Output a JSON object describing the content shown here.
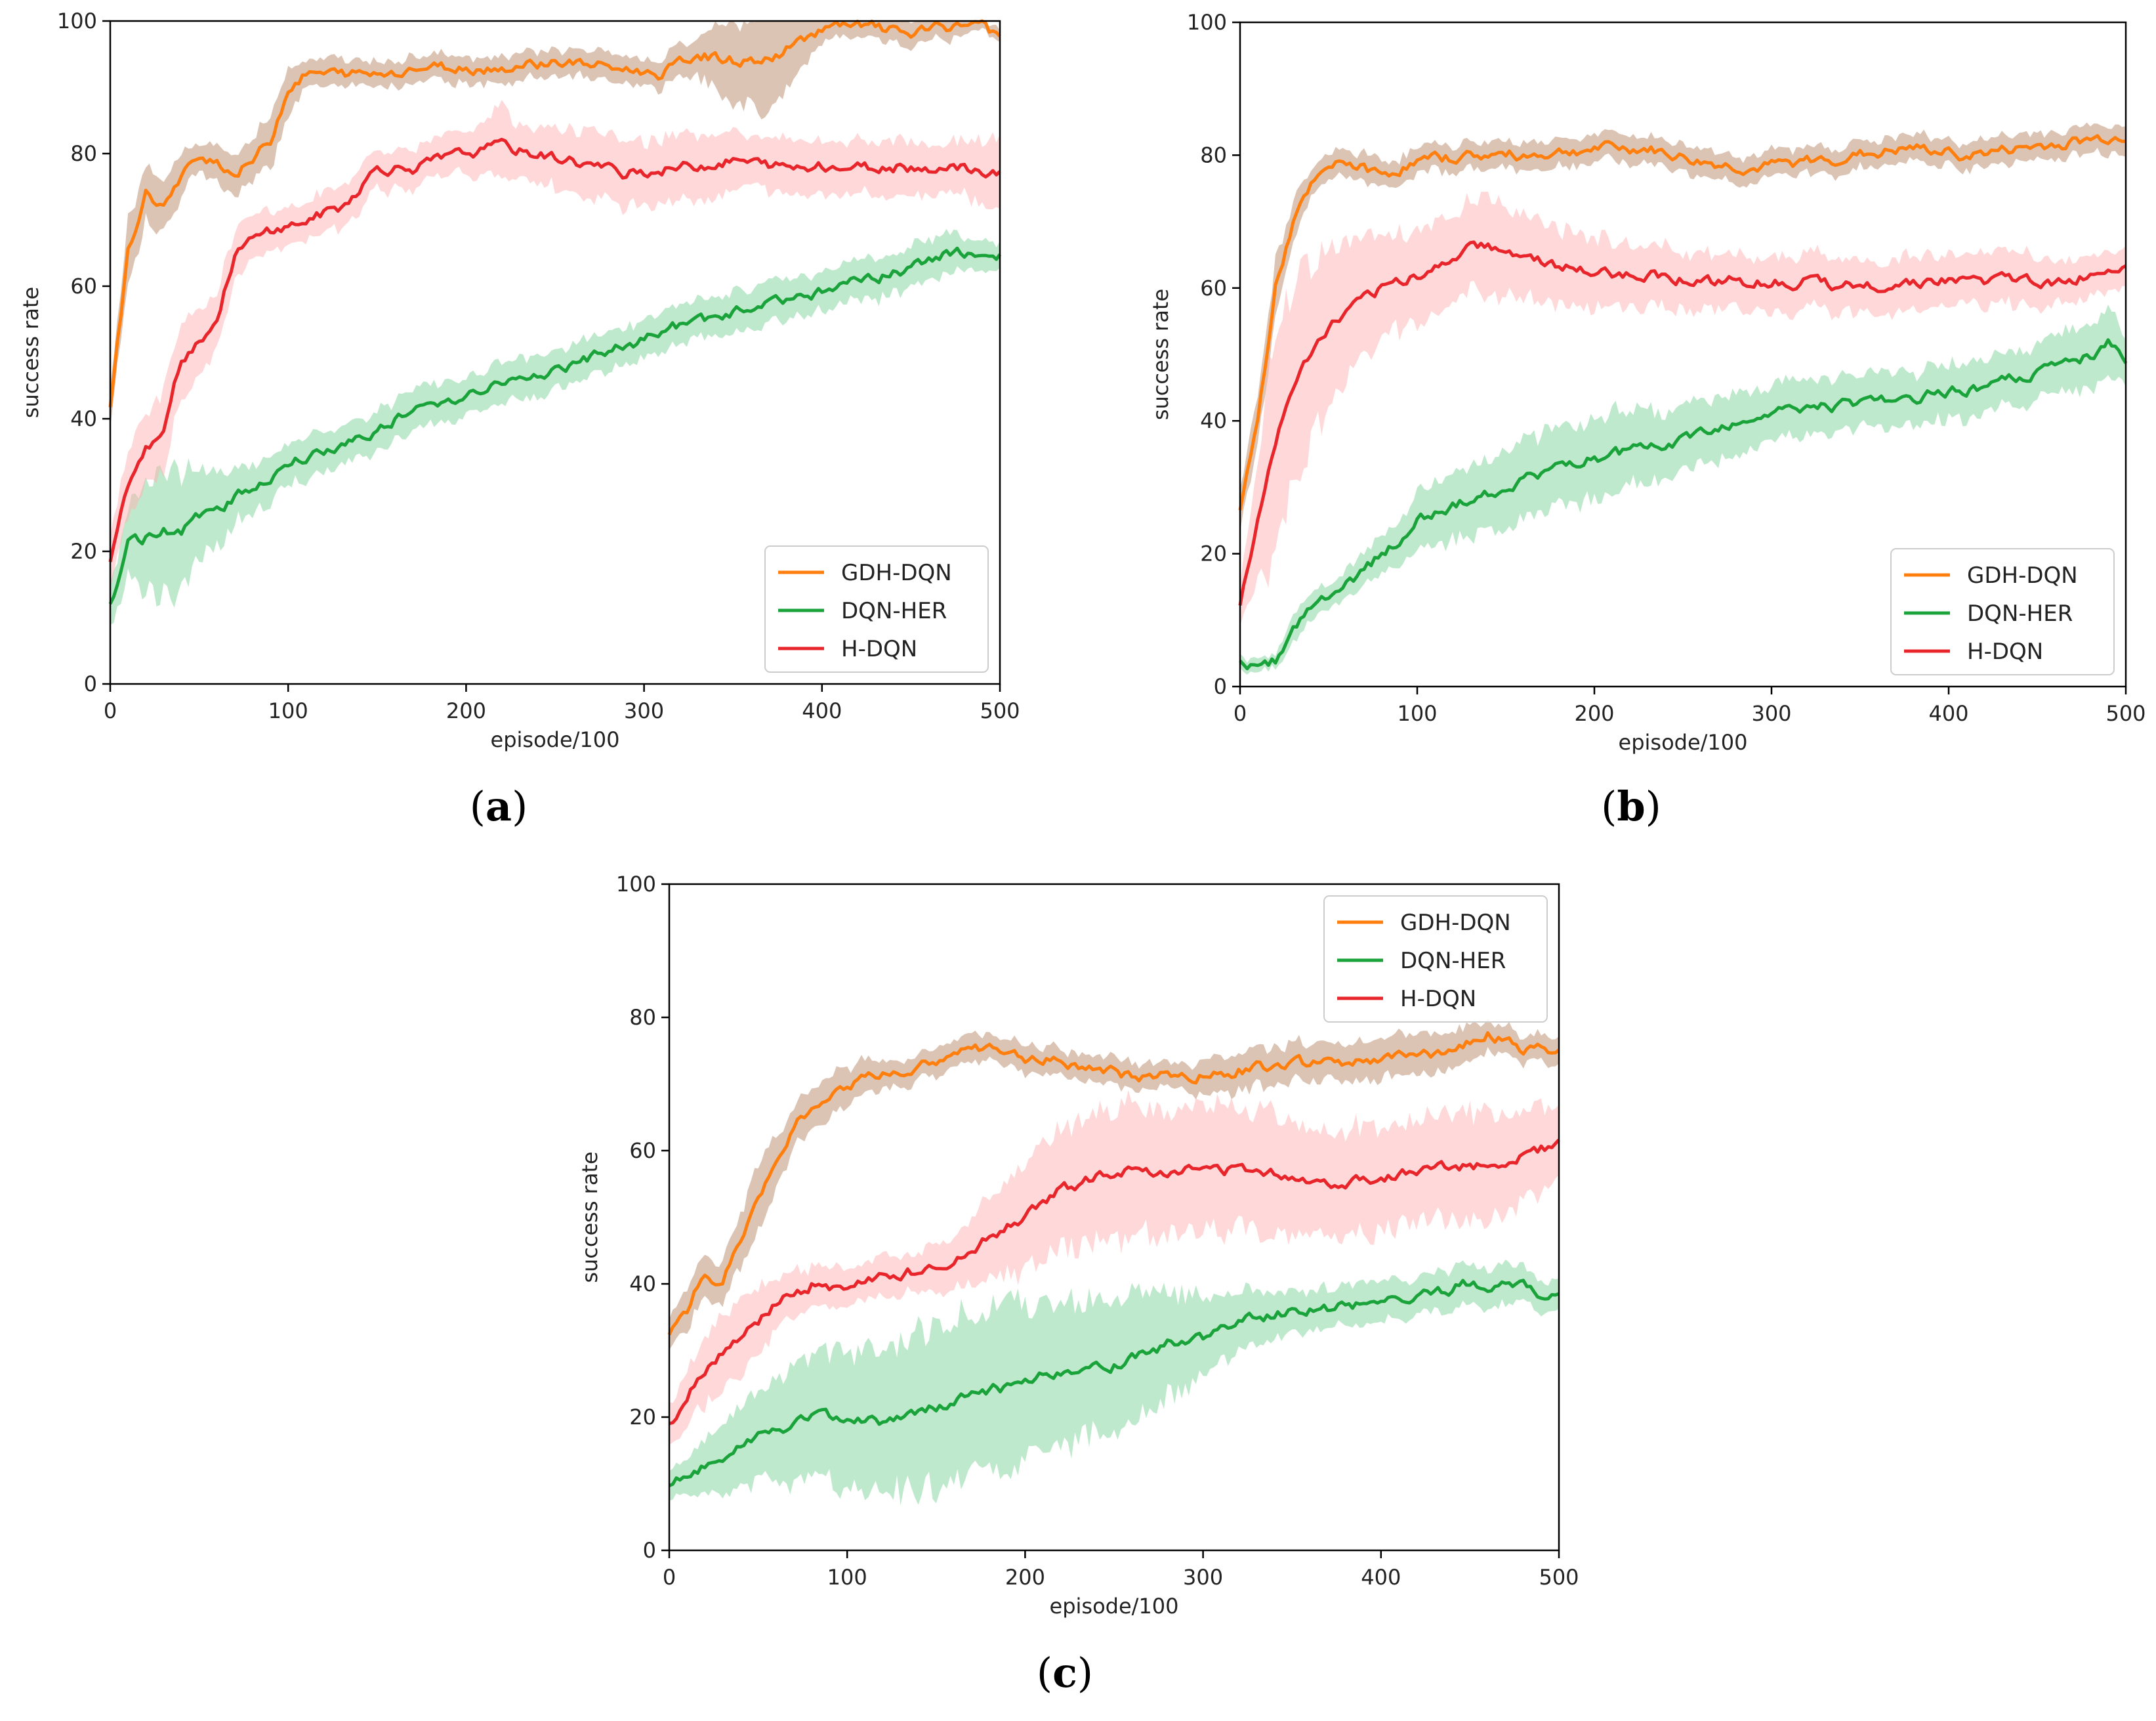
{
  "colors": {
    "GDH-DQN": "#ff7f0e",
    "DQN-HER": "#1aa33a",
    "H-DQN": "#e8252b",
    "GDH-DQN_band": "#b98a6a",
    "DQN-HER_band": "#7fd39a",
    "H-DQN_band": "#ffb3b3"
  },
  "chart_data": [
    {
      "panel": "a",
      "caption": "a",
      "type": "line",
      "xlabel": "episode/100",
      "ylabel": "success rate",
      "xlim": [
        0,
        500
      ],
      "ylim": [
        0,
        100
      ],
      "xticks": [
        "0",
        "100",
        "200",
        "300",
        "400",
        "500"
      ],
      "yticks": [
        "0",
        "20",
        "40",
        "60",
        "80",
        "100"
      ],
      "legend_position": "lower-right",
      "series": [
        {
          "name": "GDH-DQN",
          "x": [
            0,
            10,
            20,
            30,
            40,
            50,
            60,
            70,
            80,
            90,
            100,
            110,
            130,
            150,
            170,
            200,
            220,
            250,
            280,
            310,
            330,
            350,
            370,
            400,
            430,
            450,
            470,
            490,
            500
          ],
          "values": [
            42,
            65,
            74,
            72,
            76,
            80,
            79,
            77,
            79,
            82,
            90,
            92,
            92,
            92,
            93,
            93,
            93,
            94,
            93,
            92,
            95,
            94,
            94,
            99,
            99,
            98,
            99,
            100,
            97
          ],
          "band": [
            3,
            5,
            4,
            4,
            3,
            2,
            3,
            3,
            3,
            4,
            4,
            2,
            2,
            2,
            2,
            2,
            2,
            2,
            2,
            2,
            3,
            6,
            8,
            2,
            2,
            2,
            2,
            1,
            1
          ]
        },
        {
          "name": "DQN-HER",
          "x": [
            0,
            10,
            20,
            30,
            40,
            50,
            70,
            100,
            130,
            160,
            200,
            230,
            260,
            290,
            320,
            350,
            380,
            410,
            440,
            470,
            500
          ],
          "values": [
            12,
            21,
            22,
            23,
            23,
            25,
            28,
            33,
            36,
            40,
            44,
            46,
            48,
            51,
            54,
            56,
            58,
            60,
            62,
            65,
            65
          ],
          "band": [
            3,
            5,
            8,
            10,
            9,
            7,
            4,
            3,
            3,
            3,
            3,
            3,
            3,
            3,
            3,
            3,
            3,
            3,
            3,
            3,
            2
          ]
        },
        {
          "name": "H-DQN",
          "x": [
            0,
            10,
            20,
            30,
            40,
            50,
            60,
            70,
            80,
            90,
            100,
            110,
            130,
            150,
            170,
            200,
            220,
            240,
            260,
            290,
            320,
            350,
            380,
            410,
            440,
            470,
            500
          ],
          "values": [
            18,
            30,
            35,
            39,
            49,
            52,
            55,
            65,
            67,
            68,
            69,
            70,
            72,
            78,
            78,
            80,
            81,
            80,
            79,
            77,
            78,
            79,
            78,
            78,
            78,
            78,
            77
          ],
          "band": [
            4,
            5,
            5,
            6,
            6,
            5,
            4,
            4,
            4,
            3,
            3,
            3,
            3,
            3,
            3,
            3,
            5,
            4,
            5,
            5,
            5,
            4,
            4,
            4,
            4,
            4,
            5
          ]
        }
      ]
    },
    {
      "panel": "b",
      "caption": "b",
      "type": "line",
      "xlabel": "episode/100",
      "ylabel": "success rate",
      "xlim": [
        0,
        500
      ],
      "ylim": [
        0,
        100
      ],
      "xticks": [
        "0",
        "100",
        "200",
        "300",
        "400",
        "500"
      ],
      "yticks": [
        "0",
        "20",
        "40",
        "60",
        "80",
        "100"
      ],
      "legend_position": "lower-right",
      "series": [
        {
          "name": "GDH-DQN",
          "x": [
            0,
            10,
            20,
            30,
            40,
            50,
            60,
            80,
            100,
            130,
            160,
            200,
            230,
            260,
            290,
            320,
            350,
            380,
            410,
            440,
            470,
            500
          ],
          "values": [
            27,
            40,
            60,
            70,
            75,
            78,
            79,
            77,
            79,
            80,
            80,
            81,
            81,
            79,
            78,
            79,
            80,
            81,
            80,
            81,
            82,
            83
          ],
          "band": [
            3,
            4,
            4,
            3,
            2,
            2,
            2,
            2,
            2,
            2,
            2,
            2,
            2,
            2,
            2,
            2,
            2,
            2,
            2,
            2,
            2,
            2
          ]
        },
        {
          "name": "DQN-HER",
          "x": [
            0,
            10,
            20,
            30,
            40,
            50,
            60,
            80,
            100,
            120,
            150,
            180,
            210,
            240,
            270,
            300,
            330,
            360,
            390,
            420,
            450,
            480,
            490,
            500
          ],
          "values": [
            4,
            3,
            4,
            8,
            12,
            13,
            15,
            20,
            25,
            27,
            30,
            33,
            35,
            36,
            39,
            41,
            42,
            43,
            44,
            45,
            47,
            50,
            52,
            49
          ],
          "band": [
            1,
            1,
            1,
            2,
            2,
            2,
            2,
            3,
            4,
            5,
            6,
            6,
            6,
            5,
            5,
            4,
            4,
            4,
            4,
            4,
            4,
            5,
            5,
            4
          ]
        },
        {
          "name": "H-DQN",
          "x": [
            0,
            10,
            20,
            30,
            40,
            50,
            60,
            70,
            80,
            100,
            120,
            130,
            150,
            170,
            200,
            230,
            260,
            290,
            320,
            350,
            380,
            410,
            440,
            470,
            500
          ],
          "values": [
            12,
            25,
            37,
            45,
            50,
            54,
            56,
            58,
            60,
            62,
            64,
            67,
            66,
            64,
            62,
            62,
            61,
            61,
            61,
            60,
            61,
            61,
            61,
            61,
            64
          ],
          "band": [
            3,
            10,
            18,
            15,
            14,
            12,
            10,
            9,
            8,
            7,
            7,
            7,
            7,
            6,
            5,
            5,
            4,
            4,
            4,
            4,
            4,
            4,
            4,
            3,
            3
          ]
        }
      ]
    },
    {
      "panel": "c",
      "caption": "c",
      "type": "line",
      "xlabel": "episode/100",
      "ylabel": "success rate",
      "xlim": [
        0,
        500
      ],
      "ylim": [
        0,
        100
      ],
      "xticks": [
        "0",
        "100",
        "200",
        "300",
        "400",
        "500"
      ],
      "yticks": [
        "0",
        "20",
        "40",
        "60",
        "80",
        "100"
      ],
      "legend_position": "top-right",
      "series": [
        {
          "name": "GDH-DQN",
          "x": [
            0,
            10,
            20,
            30,
            40,
            50,
            60,
            70,
            80,
            90,
            100,
            120,
            140,
            160,
            180,
            200,
            230,
            260,
            290,
            320,
            350,
            380,
            410,
            440,
            460,
            480,
            500
          ],
          "values": [
            33,
            36,
            42,
            40,
            47,
            52,
            58,
            64,
            66,
            69,
            70,
            71,
            72,
            75,
            75,
            74,
            73,
            71,
            71,
            72,
            73,
            73,
            74,
            75,
            78,
            75,
            75
          ],
          "band": [
            2,
            3,
            3,
            3,
            4,
            5,
            4,
            3,
            3,
            3,
            3,
            2,
            2,
            2,
            2,
            2,
            2,
            2,
            2,
            3,
            3,
            3,
            3,
            3,
            2,
            2,
            2
          ]
        },
        {
          "name": "DQN-HER",
          "x": [
            0,
            20,
            40,
            60,
            80,
            100,
            120,
            140,
            160,
            180,
            200,
            220,
            250,
            280,
            300,
            330,
            360,
            390,
            420,
            450,
            470,
            500
          ],
          "values": [
            10,
            13,
            16,
            18,
            20,
            20,
            19,
            21,
            22,
            24,
            25,
            27,
            28,
            31,
            32,
            35,
            36,
            37,
            38,
            40,
            40,
            38
          ],
          "band": [
            2,
            4,
            6,
            8,
            9,
            10,
            10,
            12,
            12,
            12,
            12,
            11,
            10,
            8,
            6,
            4,
            3,
            3,
            3,
            3,
            3,
            2
          ]
        },
        {
          "name": "H-DQN",
          "x": [
            0,
            20,
            40,
            60,
            80,
            100,
            120,
            140,
            160,
            180,
            200,
            220,
            250,
            280,
            310,
            340,
            370,
            400,
            430,
            460,
            500
          ],
          "values": [
            19,
            27,
            32,
            37,
            40,
            39,
            41,
            42,
            44,
            47,
            50,
            54,
            57,
            57,
            57,
            57,
            55,
            56,
            57,
            58,
            61
          ],
          "band": [
            3,
            5,
            6,
            4,
            3,
            3,
            3,
            3,
            4,
            6,
            8,
            9,
            10,
            9,
            9,
            9,
            8,
            8,
            8,
            8,
            6
          ]
        }
      ]
    }
  ]
}
